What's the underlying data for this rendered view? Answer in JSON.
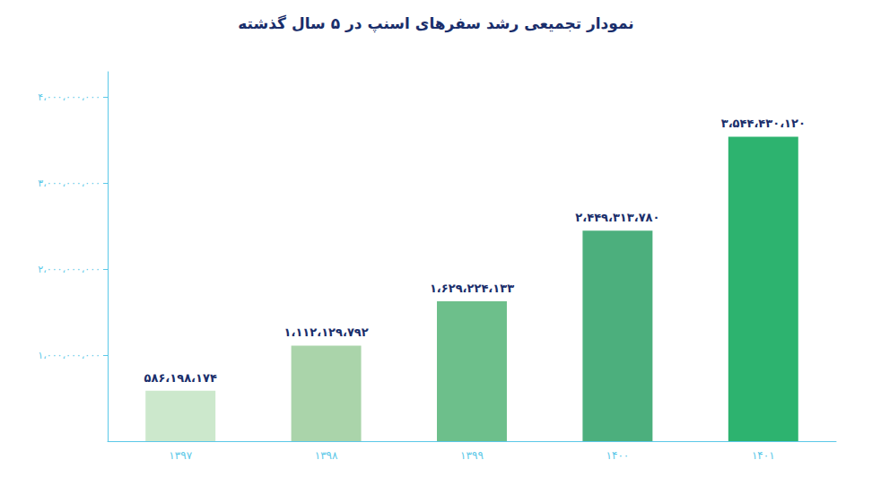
{
  "chart_data": {
    "type": "bar",
    "title": "نمودار تجمیعی رشد سفرهای اسنپ در ۵ سال گذشته",
    "categories": [
      "۱۳۹۷",
      "۱۳۹۸",
      "۱۳۹۹",
      "۱۴۰۰",
      "۱۴۰۱"
    ],
    "values": [
      586198174,
      1112129792,
      1629224133,
      2449313780,
      3544430120
    ],
    "value_labels": [
      "۵۸۶،۱۹۸،۱۷۴",
      "۱،۱۱۲،۱۲۹،۷۹۲",
      "۱،۶۲۹،۲۲۴،۱۳۳",
      "۲،۴۴۹،۳۱۳،۷۸۰",
      "۳،۵۴۴،۴۳۰،۱۲۰"
    ],
    "colors": [
      "#cce8cc",
      "#aad4aa",
      "#6dbf8b",
      "#4caf7d",
      "#2db36f"
    ],
    "data_labels": true,
    "ylim": [
      0,
      4300000000
    ],
    "yticks": [
      {
        "value": 1000000000,
        "label": "۱،۰۰۰،۰۰۰،۰۰۰"
      },
      {
        "value": 2000000000,
        "label": "۲،۰۰۰،۰۰۰،۰۰۰"
      },
      {
        "value": 3000000000,
        "label": "۳،۰۰۰،۰۰۰،۰۰۰"
      },
      {
        "value": 4000000000,
        "label": "۴،۰۰۰،۰۰۰،۰۰۰"
      }
    ],
    "grid": false
  }
}
